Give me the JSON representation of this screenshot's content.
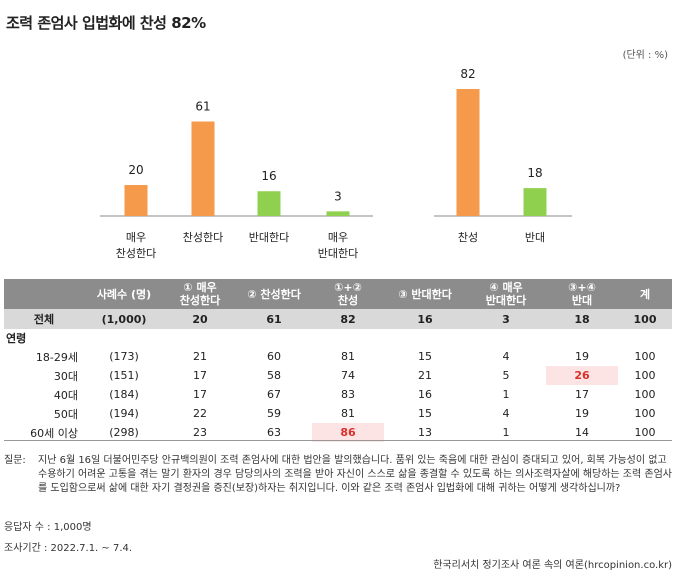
{
  "title": "조력 존엄사 입법화에 찬성 82%",
  "unit": "(단위 : %)",
  "chart_data": {
    "type": "bar",
    "groups": [
      {
        "bars": [
          {
            "label": [
              "매우",
              "찬성한다"
            ],
            "value": 20,
            "color": "#f5994b"
          },
          {
            "label": [
              "찬성한다"
            ],
            "value": 61,
            "color": "#f5994b"
          },
          {
            "label": [
              "반대한다"
            ],
            "value": 16,
            "color": "#8fd14f"
          },
          {
            "label": [
              "매우",
              "반대한다"
            ],
            "value": 3,
            "color": "#8fd14f"
          }
        ]
      },
      {
        "bars": [
          {
            "label": [
              "찬성"
            ],
            "value": 82,
            "color": "#f5994b"
          },
          {
            "label": [
              "반대"
            ],
            "value": 18,
            "color": "#8fd14f"
          }
        ]
      }
    ],
    "ylim": [
      0,
      82
    ]
  },
  "table": {
    "headers": [
      "",
      "사례수 (명)",
      "① 매우\n찬성한다",
      "② 찬성한다",
      "①+②\n찬성",
      "③ 반대한다",
      "④ 매우\n반대한다",
      "③+④\n반대",
      "계"
    ],
    "total": [
      "전체",
      "(1,000)",
      "20",
      "61",
      "82",
      "16",
      "3",
      "18",
      "100"
    ],
    "section": "연령",
    "rows": [
      [
        "18-29세",
        "(173)",
        "21",
        "60",
        "81",
        "15",
        "4",
        "19",
        "100"
      ],
      [
        "30대",
        "(151)",
        "17",
        "58",
        "74",
        "21",
        "5",
        "26",
        "100"
      ],
      [
        "40대",
        "(184)",
        "17",
        "67",
        "83",
        "16",
        "1",
        "17",
        "100"
      ],
      [
        "50대",
        "(194)",
        "22",
        "59",
        "81",
        "15",
        "4",
        "19",
        "100"
      ],
      [
        "60세 이상",
        "(298)",
        "23",
        "63",
        "86",
        "13",
        "1",
        "14",
        "100"
      ]
    ],
    "highlight": [
      [
        1,
        7
      ],
      [
        4,
        4
      ]
    ]
  },
  "question_label": "질문:",
  "question": "지난 6월 16일 더불어민주당 안규백의원이 조력 존엄사에 대한 법안을 발의했습니다. 품위 있는 죽음에 대한 관심이 증대되고 있어, 회복 가능성이 없고 수용하기 어려운 고통을 겪는 말기 환자의 경우 담당의사의 조력을 받아 자신이 스스로 삶을 종결할 수 있도록 하는 의사조력자살에 해당하는 조력 존엄사를 도입함으로써 삶에 대한 자기 결정권을 증진(보장)하자는 취지입니다. 이와 같은 조력 존엄사 입법화에 대해 귀하는 어떻게 생각하십니까?",
  "respondents": "응답자 수 : 1,000명",
  "period": "조사기간 : 2022.7.1. ~ 7.4.",
  "source": "한국리서치 정기조사 여론 속의 여론(hrcopinion.co.kr)"
}
